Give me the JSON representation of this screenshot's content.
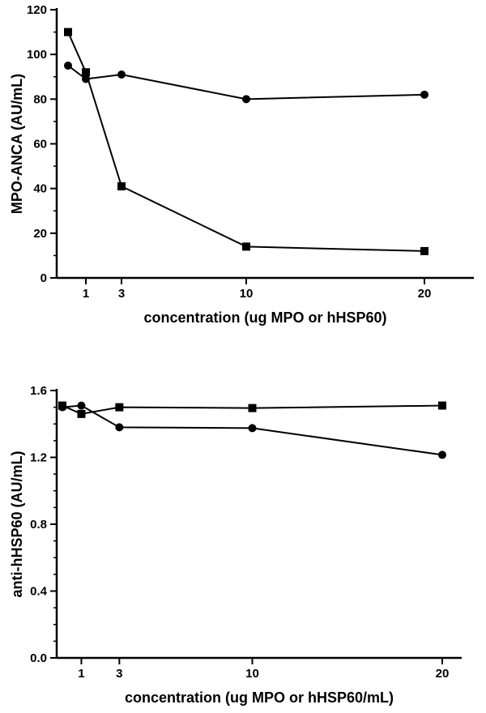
{
  "chart_data": [
    {
      "type": "line",
      "title": "",
      "xlabel": "concentration (ug MPO or hHSP60)",
      "ylabel": "MPO-ANCA (AU/mL)",
      "xlim": [
        0,
        27
      ],
      "ylim": [
        0,
        120
      ],
      "yticks": [
        0,
        20,
        40,
        60,
        80,
        100,
        120
      ],
      "ytick_labels": [
        "0",
        "20",
        "40",
        "60",
        "80",
        "100",
        "120"
      ],
      "xticks": [
        1,
        3,
        10,
        20
      ],
      "xtick_labels": [
        "1",
        "3",
        "10",
        "20"
      ],
      "grid": false,
      "series": [
        {
          "marker": "circle",
          "x": [
            0,
            1,
            3,
            10,
            20
          ],
          "y": [
            95,
            89,
            91,
            80,
            82
          ]
        },
        {
          "marker": "square",
          "x": [
            0,
            1,
            3,
            10,
            20
          ],
          "y": [
            110,
            92,
            41,
            14,
            12
          ]
        }
      ]
    },
    {
      "type": "line",
      "title": "",
      "xlabel": "concentration (ug MPO or hHSP60/mL)",
      "ylabel": "anti-hHSP60 (AU/mL)",
      "xlim": [
        0,
        21
      ],
      "ylim": [
        0,
        1.6
      ],
      "yticks": [
        0,
        0.4,
        0.8,
        1.2,
        1.6
      ],
      "ytick_labels": [
        "0.0",
        "0.4",
        "0.8",
        "1.2",
        "1.6"
      ],
      "xticks": [
        1,
        3,
        10,
        20
      ],
      "xtick_labels": [
        "1",
        "3",
        "10",
        "20"
      ],
      "grid": false,
      "series": [
        {
          "marker": "circle",
          "x": [
            0,
            1,
            3,
            10,
            20
          ],
          "y": [
            1.5,
            1.51,
            1.38,
            1.375,
            1.215
          ]
        },
        {
          "marker": "square",
          "x": [
            0,
            1,
            3,
            10,
            20
          ],
          "y": [
            1.51,
            1.46,
            1.5,
            1.495,
            1.51
          ]
        }
      ]
    }
  ]
}
